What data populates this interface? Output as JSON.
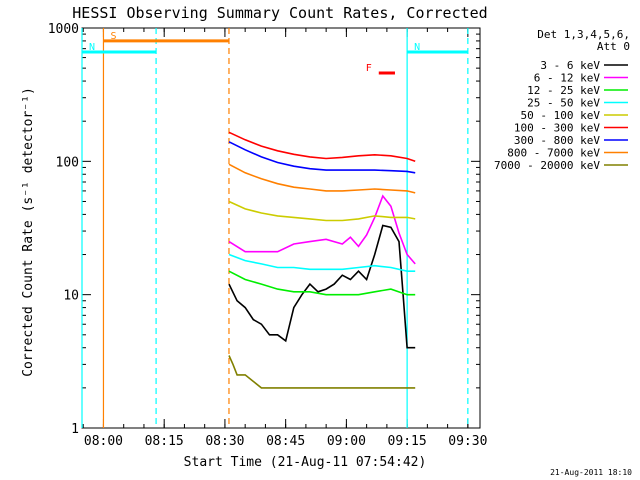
{
  "chart_data": {
    "type": "line",
    "title": "HESSI Observing Summary Count Rates, Corrected",
    "xlabel": "Start Time (21-Aug-11 07:54:42)",
    "ylabel": "Corrected Count Rate (s⁻¹ detector⁻¹)",
    "yscale": "log",
    "ylim": [
      1,
      1000
    ],
    "xlim": [
      "07:54:42",
      "09:33:00"
    ],
    "x_ticks": [
      "08:00",
      "08:15",
      "08:30",
      "08:45",
      "09:00",
      "09:15",
      "09:30"
    ],
    "y_ticks": [
      "1",
      "10",
      "100",
      "1000"
    ],
    "grid": false,
    "legend": {
      "placement": "top-right",
      "header": [
        "Det 1,3,4,5,6,",
        "Att 0"
      ]
    },
    "timestamp": "21-Aug-2011 18:10",
    "data_interval": {
      "start": "08:31",
      "end": "09:17"
    },
    "series": [
      {
        "name": "3 - 6 keV",
        "color": "#000000",
        "x": [
          "08:31",
          "08:33",
          "08:35",
          "08:37",
          "08:39",
          "08:41",
          "08:43",
          "08:45",
          "08:47",
          "08:49",
          "08:51",
          "08:53",
          "08:55",
          "08:57",
          "08:59",
          "09:01",
          "09:03",
          "09:05",
          "09:07",
          "09:09",
          "09:11",
          "09:13",
          "09:14",
          "09:15",
          "09:17"
        ],
        "y": [
          12,
          9,
          8,
          6.5,
          6,
          5,
          5,
          4.5,
          8,
          10,
          12,
          10.5,
          11,
          12,
          14,
          13,
          15,
          13,
          20,
          33,
          32,
          25,
          10,
          4,
          4
        ]
      },
      {
        "name": "6 - 12 keV",
        "color": "#ff00ff",
        "x": [
          "08:31",
          "08:35",
          "08:39",
          "08:43",
          "08:47",
          "08:51",
          "08:55",
          "08:59",
          "09:01",
          "09:03",
          "09:05",
          "09:07",
          "09:09",
          "09:11",
          "09:13",
          "09:15",
          "09:17"
        ],
        "y": [
          25,
          21,
          21,
          21,
          24,
          25,
          26,
          24,
          27,
          23,
          28,
          38,
          55,
          46,
          29,
          20,
          17
        ]
      },
      {
        "name": "12 - 25 keV",
        "color": "#00ee00",
        "x": [
          "08:31",
          "08:35",
          "08:39",
          "08:43",
          "08:47",
          "08:51",
          "08:55",
          "08:59",
          "09:03",
          "09:07",
          "09:11",
          "09:15",
          "09:17"
        ],
        "y": [
          15,
          13,
          12,
          11,
          10.5,
          10.5,
          10,
          10,
          10,
          10.5,
          11,
          10,
          10
        ]
      },
      {
        "name": "25 - 50 keV",
        "color": "#00ffff",
        "x": [
          "08:31",
          "08:35",
          "08:39",
          "08:43",
          "08:47",
          "08:51",
          "08:55",
          "08:59",
          "09:03",
          "09:07",
          "09:11",
          "09:15",
          "09:17"
        ],
        "y": [
          20,
          18,
          17,
          16,
          16,
          15.5,
          15.5,
          15.5,
          16,
          16.5,
          16,
          15,
          15
        ]
      },
      {
        "name": "50 - 100 keV",
        "color": "#cccc00",
        "x": [
          "08:31",
          "08:35",
          "08:39",
          "08:43",
          "08:47",
          "08:51",
          "08:55",
          "08:59",
          "09:03",
          "09:07",
          "09:11",
          "09:15",
          "09:17"
        ],
        "y": [
          50,
          44,
          41,
          39,
          38,
          37,
          36,
          36,
          37,
          39,
          38,
          38,
          37
        ]
      },
      {
        "name": "100 - 300 keV",
        "color": "#ff0000",
        "x": [
          "08:31",
          "08:35",
          "08:39",
          "08:43",
          "08:47",
          "08:51",
          "08:55",
          "08:59",
          "09:03",
          "09:07",
          "09:11",
          "09:15",
          "09:17"
        ],
        "y": [
          165,
          145,
          130,
          120,
          113,
          108,
          105,
          107,
          110,
          112,
          110,
          105,
          100
        ]
      },
      {
        "name": "300 - 800 keV",
        "color": "#0000ff",
        "x": [
          "08:31",
          "08:35",
          "08:39",
          "08:43",
          "08:47",
          "08:51",
          "08:55",
          "08:59",
          "09:03",
          "09:07",
          "09:11",
          "09:15",
          "09:17"
        ],
        "y": [
          140,
          122,
          108,
          98,
          92,
          88,
          86,
          86,
          86,
          86,
          85,
          84,
          82
        ]
      },
      {
        "name": "800 - 7000 keV",
        "color": "#ff8000",
        "x": [
          "08:31",
          "08:35",
          "08:39",
          "08:43",
          "08:47",
          "08:51",
          "08:55",
          "08:59",
          "09:03",
          "09:07",
          "09:11",
          "09:15",
          "09:17"
        ],
        "y": [
          95,
          82,
          74,
          68,
          64,
          62,
          60,
          60,
          61,
          62,
          61,
          60,
          58
        ]
      },
      {
        "name": "7000 - 20000 keV",
        "color": "#808000",
        "x": [
          "08:31",
          "08:32",
          "08:33",
          "08:35",
          "08:39",
          "08:43",
          "08:47",
          "08:51",
          "08:55",
          "08:59",
          "09:03",
          "09:07",
          "09:11",
          "09:15",
          "09:17"
        ],
        "y": [
          3.5,
          3,
          2.5,
          2.5,
          2,
          2,
          2,
          2,
          2,
          2,
          2,
          2,
          2,
          2,
          2
        ]
      }
    ],
    "observing_flags": [
      {
        "label": "S",
        "color": "#ff8000",
        "start": "08:00",
        "end": "08:31",
        "level": 800
      },
      {
        "label": "N",
        "color": "#00ffff",
        "start": "07:54:42",
        "end": "08:13",
        "level": 660
      },
      {
        "label": "N",
        "color": "#00ffff",
        "start": "09:15",
        "end": "09:30",
        "level": 660
      },
      {
        "label": "F",
        "color": "#ff0000",
        "start": "09:08",
        "end": "09:12",
        "level": 460
      }
    ],
    "vertical_markers": [
      {
        "time": "07:54:42",
        "color": "#00ffff",
        "style": "solid"
      },
      {
        "time": "08:00",
        "color": "#ff8000",
        "style": "solid"
      },
      {
        "time": "08:13",
        "color": "#00ffff",
        "style": "dashed"
      },
      {
        "time": "08:31",
        "color": "#ff8000",
        "style": "dashed"
      },
      {
        "time": "09:15",
        "color": "#00ffff",
        "style": "solid"
      },
      {
        "time": "09:30",
        "color": "#00ffff",
        "style": "dashed"
      }
    ]
  }
}
